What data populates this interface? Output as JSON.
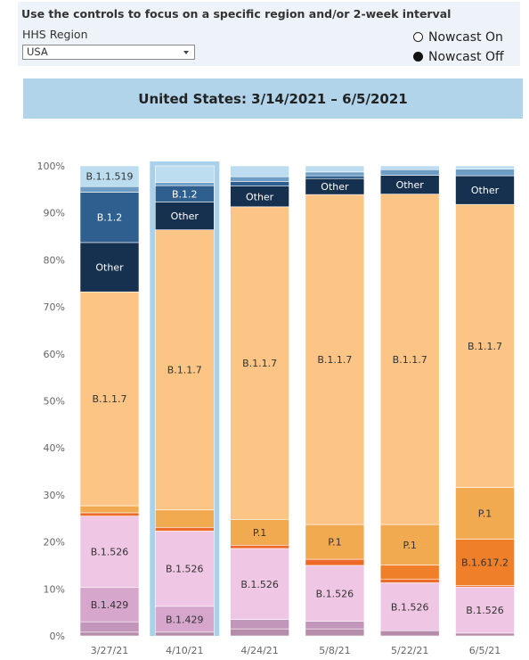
{
  "controls": {
    "instructions": "Use the controls to focus on a specific region and/or 2-week interval",
    "region_label": "HHS Region",
    "region_value": "USA",
    "nowcast_on_label": "Nowcast On",
    "nowcast_off_label": "Nowcast Off"
  },
  "chart_title": "United States: 3/14/2021 – 6/5/2021",
  "chart_data": {
    "type": "bar",
    "stacked": true,
    "title": "United States: 3/14/2021 – 6/5/2021",
    "xlabel": "",
    "ylabel": "",
    "ylim": [
      0,
      100
    ],
    "y_ticks": [
      "0%",
      "10%",
      "20%",
      "30%",
      "40%",
      "50%",
      "60%",
      "70%",
      "80%",
      "90%",
      "100%"
    ],
    "categories": [
      "3/27/21",
      "4/10/21",
      "4/24/21",
      "5/8/21",
      "5/22/21",
      "6/5/21"
    ],
    "highlighted_category": "4/10/21",
    "legend": "none",
    "grid": false,
    "colors": {
      "B.1.1.519": "#bcdcef",
      "B.1.2": "#2e5f8f",
      "Other": "#16304f",
      "B.1.1.7": "#fdc585",
      "P.1": "#f2aa51",
      "B.1.617.2": "#f07f2a",
      "minor_orange": "#ed6a28",
      "B.1.526": "#efc6e3",
      "B.1.429": "#d7a6cc",
      "minor_purple": "#c295ba",
      "minor_purple_2": "#b68cab",
      "minor_blue": "#6e9ec6",
      "minor_light_blue": "#a9cce6",
      "highlight": "#a9d1ea"
    },
    "bars": [
      {
        "category": "3/27/21",
        "segments": [
          {
            "variant": "minor_purple_2",
            "value": 0.8,
            "label": ""
          },
          {
            "variant": "minor_purple",
            "value": 2.2,
            "label": ""
          },
          {
            "variant": "B.1.429",
            "value": 7.3,
            "label": "B.1.429"
          },
          {
            "variant": "B.1.526",
            "value": 15.2,
            "label": "B.1.526"
          },
          {
            "variant": "minor_orange",
            "value": 0.7,
            "label": ""
          },
          {
            "variant": "P.1",
            "value": 1.5,
            "label": ""
          },
          {
            "variant": "B.1.1.7",
            "value": 45.5,
            "label": "B.1.1.7"
          },
          {
            "variant": "Other",
            "value": 10.5,
            "label": "Other"
          },
          {
            "variant": "B.1.2",
            "value": 10.7,
            "label": "B.1.2"
          },
          {
            "variant": "minor_blue",
            "value": 1.2,
            "label": ""
          },
          {
            "variant": "B.1.1.519",
            "value": 4.4,
            "label": "B.1.1.519"
          }
        ]
      },
      {
        "category": "4/10/21",
        "segments": [
          {
            "variant": "minor_purple_2",
            "value": 0.8,
            "label": ""
          },
          {
            "variant": "B.1.429",
            "value": 5.5,
            "label": "B.1.429"
          },
          {
            "variant": "B.1.526",
            "value": 16.0,
            "label": "B.1.526"
          },
          {
            "variant": "minor_orange",
            "value": 0.8,
            "label": ""
          },
          {
            "variant": "P.1",
            "value": 3.7,
            "label": ""
          },
          {
            "variant": "B.1.1.7",
            "value": 59.6,
            "label": "B.1.1.7"
          },
          {
            "variant": "Other",
            "value": 5.9,
            "label": "Other"
          },
          {
            "variant": "B.1.2",
            "value": 3.5,
            "label": "B.1.2"
          },
          {
            "variant": "minor_blue",
            "value": 0.7,
            "label": ""
          },
          {
            "variant": "B.1.1.519",
            "value": 3.5,
            "label": ""
          }
        ]
      },
      {
        "category": "4/24/21",
        "segments": [
          {
            "variant": "minor_purple_2",
            "value": 1.5,
            "label": ""
          },
          {
            "variant": "minor_purple",
            "value": 2.0,
            "label": ""
          },
          {
            "variant": "B.1.526",
            "value": 15.1,
            "label": "B.1.526"
          },
          {
            "variant": "minor_orange",
            "value": 0.7,
            "label": ""
          },
          {
            "variant": "P.1",
            "value": 5.5,
            "label": "P.1"
          },
          {
            "variant": "B.1.1.7",
            "value": 66.5,
            "label": "B.1.1.7"
          },
          {
            "variant": "Other",
            "value": 4.4,
            "label": "Other"
          },
          {
            "variant": "B.1.2",
            "value": 1.0,
            "label": ""
          },
          {
            "variant": "minor_blue",
            "value": 1.0,
            "label": ""
          },
          {
            "variant": "B.1.1.519",
            "value": 2.3,
            "label": ""
          }
        ]
      },
      {
        "category": "5/8/21",
        "segments": [
          {
            "variant": "minor_purple_2",
            "value": 1.5,
            "label": ""
          },
          {
            "variant": "minor_purple",
            "value": 1.6,
            "label": ""
          },
          {
            "variant": "B.1.526",
            "value": 11.9,
            "label": "B.1.526"
          },
          {
            "variant": "minor_orange",
            "value": 1.3,
            "label": ""
          },
          {
            "variant": "P.1",
            "value": 7.4,
            "label": "P.1"
          },
          {
            "variant": "B.1.1.7",
            "value": 70.2,
            "label": "B.1.1.7"
          },
          {
            "variant": "Other",
            "value": 3.4,
            "label": "Other"
          },
          {
            "variant": "B.1.2",
            "value": 0.6,
            "label": ""
          },
          {
            "variant": "minor_blue",
            "value": 0.8,
            "label": ""
          },
          {
            "variant": "B.1.1.519",
            "value": 1.3,
            "label": ""
          }
        ]
      },
      {
        "category": "5/22/21",
        "segments": [
          {
            "variant": "minor_purple_2",
            "value": 1.1,
            "label": ""
          },
          {
            "variant": "B.1.526",
            "value": 10.2,
            "label": "B.1.526"
          },
          {
            "variant": "minor_orange",
            "value": 0.8,
            "label": ""
          },
          {
            "variant": "B.1.617.2",
            "value": 3.0,
            "label": ""
          },
          {
            "variant": "P.1",
            "value": 8.6,
            "label": "P.1"
          },
          {
            "variant": "B.1.1.7",
            "value": 70.3,
            "label": "B.1.1.7"
          },
          {
            "variant": "Other",
            "value": 4.0,
            "label": "Other"
          },
          {
            "variant": "minor_blue",
            "value": 1.2,
            "label": ""
          },
          {
            "variant": "B.1.1.519",
            "value": 0.8,
            "label": ""
          }
        ]
      },
      {
        "category": "6/5/21",
        "segments": [
          {
            "variant": "minor_purple_2",
            "value": 0.6,
            "label": ""
          },
          {
            "variant": "B.1.526",
            "value": 9.8,
            "label": "B.1.526"
          },
          {
            "variant": "minor_orange",
            "value": 0.3,
            "label": ""
          },
          {
            "variant": "B.1.617.2",
            "value": 9.9,
            "label": "B.1.617.2"
          },
          {
            "variant": "P.1",
            "value": 11.0,
            "label": "P.1"
          },
          {
            "variant": "B.1.1.7",
            "value": 60.2,
            "label": "B.1.1.7"
          },
          {
            "variant": "Other",
            "value": 6.1,
            "label": "Other"
          },
          {
            "variant": "minor_blue",
            "value": 1.4,
            "label": ""
          },
          {
            "variant": "B.1.1.519",
            "value": 0.7,
            "label": ""
          }
        ]
      }
    ]
  }
}
